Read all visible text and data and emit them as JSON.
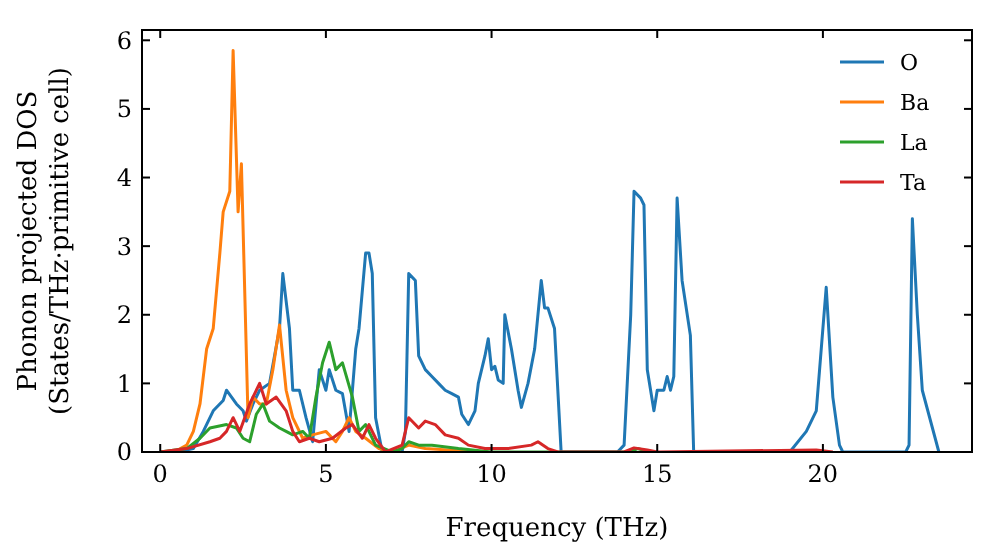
{
  "chart_data": {
    "type": "line",
    "xlabel": "Frequency (THz)",
    "ylabel": "Phonon projected DOS\n(States/THz·primitive cell)",
    "xlim": [
      -0.55,
      24.5
    ],
    "ylim": [
      0,
      6.15
    ],
    "xticks": [
      0,
      5,
      10,
      15,
      20
    ],
    "yticks": [
      0,
      1,
      2,
      3,
      4,
      5,
      6
    ],
    "legend": "top right",
    "grid": false,
    "series": [
      {
        "name": "O",
        "color": "#1f77b4",
        "x": [
          0,
          0.5,
          1,
          1.3,
          1.6,
          1.9,
          2.0,
          2.3,
          2.5,
          2.6,
          2.8,
          3.0,
          3.3,
          3.6,
          3.7,
          3.9,
          4.0,
          4.2,
          4.4,
          4.6,
          4.8,
          5.0,
          5.1,
          5.3,
          5.5,
          5.7,
          5.9,
          6.0,
          6.2,
          6.3,
          6.4,
          6.5,
          6.7,
          7.3,
          7.4,
          7.5,
          7.7,
          7.8,
          8.0,
          8.2,
          8.4,
          8.6,
          8.8,
          9.0,
          9.1,
          9.3,
          9.5,
          9.6,
          9.8,
          9.9,
          10.0,
          10.1,
          10.2,
          10.35,
          10.4,
          10.6,
          10.8,
          10.9,
          11.1,
          11.3,
          11.5,
          11.6,
          11.7,
          11.9,
          12.1,
          13.8,
          14.0,
          14.2,
          14.3,
          14.5,
          14.6,
          14.7,
          14.9,
          15.0,
          15.2,
          15.3,
          15.4,
          15.5,
          15.6,
          15.75,
          16.0,
          16.1,
          19.0,
          19.5,
          19.8,
          20.0,
          20.1,
          20.3,
          20.5,
          20.6,
          22.5,
          22.6,
          22.7,
          22.85,
          23.0,
          23.5
        ],
        "values": [
          0,
          0,
          0.05,
          0.3,
          0.6,
          0.75,
          0.9,
          0.7,
          0.6,
          0.45,
          0.7,
          0.9,
          1.0,
          1.8,
          2.6,
          1.8,
          0.9,
          0.9,
          0.5,
          0.15,
          1.2,
          0.9,
          1.2,
          0.9,
          0.85,
          0.3,
          1.5,
          1.8,
          2.9,
          2.9,
          2.6,
          0.5,
          0,
          0,
          0.3,
          2.6,
          2.5,
          1.4,
          1.2,
          1.1,
          1.0,
          0.9,
          0.85,
          0.8,
          0.55,
          0.4,
          0.6,
          1.0,
          1.4,
          1.65,
          1.2,
          1.25,
          1.05,
          1.0,
          2.0,
          1.5,
          0.9,
          0.65,
          1.0,
          1.5,
          2.5,
          2.1,
          2.1,
          1.8,
          0,
          0,
          0.1,
          2.0,
          3.8,
          3.7,
          3.6,
          1.2,
          0.6,
          0.9,
          0.9,
          1.1,
          0.9,
          1.1,
          3.7,
          2.5,
          1.7,
          0,
          0,
          0.3,
          0.6,
          1.8,
          2.4,
          0.8,
          0.1,
          0,
          0,
          0.1,
          3.4,
          2.0,
          0.9,
          0
        ]
      },
      {
        "name": "Ba",
        "color": "#ff7f0e",
        "x": [
          0,
          0.5,
          0.8,
          1.0,
          1.2,
          1.4,
          1.6,
          1.8,
          1.9,
          2.1,
          2.2,
          2.35,
          2.45,
          2.65,
          2.8,
          3.0,
          3.2,
          3.4,
          3.6,
          3.8,
          4.0,
          4.3,
          4.6,
          5.0,
          5.3,
          5.5,
          5.7,
          5.9,
          6.2,
          6.6,
          7.0,
          7.5,
          8.0,
          9.0,
          9.5
        ],
        "values": [
          0,
          0.02,
          0.1,
          0.3,
          0.7,
          1.5,
          1.8,
          2.9,
          3.5,
          3.8,
          5.85,
          3.5,
          4.2,
          0.5,
          0.8,
          0.7,
          0.7,
          1.2,
          1.85,
          0.9,
          0.5,
          0.2,
          0.25,
          0.3,
          0.15,
          0.3,
          0.5,
          0.3,
          0.2,
          0.05,
          0,
          0.1,
          0.05,
          0.02,
          0
        ]
      },
      {
        "name": "La",
        "color": "#2ca02c",
        "x": [
          0,
          0.8,
          1.2,
          1.5,
          2.0,
          2.3,
          2.5,
          2.7,
          2.9,
          3.1,
          3.3,
          3.6,
          3.8,
          4.0,
          4.3,
          4.5,
          4.7,
          4.9,
          5.1,
          5.3,
          5.5,
          5.8,
          6.0,
          6.2,
          6.5,
          7.0,
          7.3,
          7.5,
          7.8,
          8.2,
          9.0,
          10,
          14.2,
          14.4,
          14.8
        ],
        "values": [
          0,
          0.05,
          0.2,
          0.35,
          0.4,
          0.35,
          0.2,
          0.15,
          0.55,
          0.7,
          0.45,
          0.35,
          0.3,
          0.25,
          0.3,
          0.2,
          0.8,
          1.3,
          1.6,
          1.2,
          1.3,
          0.8,
          0.3,
          0.4,
          0.1,
          0,
          0.05,
          0.15,
          0.1,
          0.1,
          0.05,
          0,
          0,
          0.05,
          0
        ]
      },
      {
        "name": "Ta",
        "color": "#d62728",
        "x": [
          0,
          0.8,
          1.5,
          1.8,
          2.0,
          2.2,
          2.4,
          2.7,
          3.0,
          3.2,
          3.5,
          3.8,
          4.0,
          4.2,
          4.5,
          4.8,
          5.2,
          5.6,
          5.8,
          6.1,
          6.3,
          6.5,
          6.8,
          7.3,
          7.5,
          7.8,
          8.0,
          8.3,
          8.6,
          9.0,
          9.3,
          9.8,
          10.5,
          11.2,
          11.4,
          11.7,
          12,
          14.0,
          14.3,
          14.7,
          15,
          19.8,
          20.3
        ],
        "values": [
          0,
          0.05,
          0.15,
          0.2,
          0.3,
          0.5,
          0.3,
          0.7,
          1.0,
          0.7,
          0.8,
          0.6,
          0.3,
          0.15,
          0.2,
          0.15,
          0.2,
          0.35,
          0.4,
          0.2,
          0.4,
          0.2,
          0,
          0.1,
          0.5,
          0.35,
          0.45,
          0.4,
          0.25,
          0.2,
          0.1,
          0.05,
          0.05,
          0.1,
          0.15,
          0.05,
          0,
          0,
          0.06,
          0.03,
          0,
          0.03,
          0
        ]
      }
    ]
  }
}
